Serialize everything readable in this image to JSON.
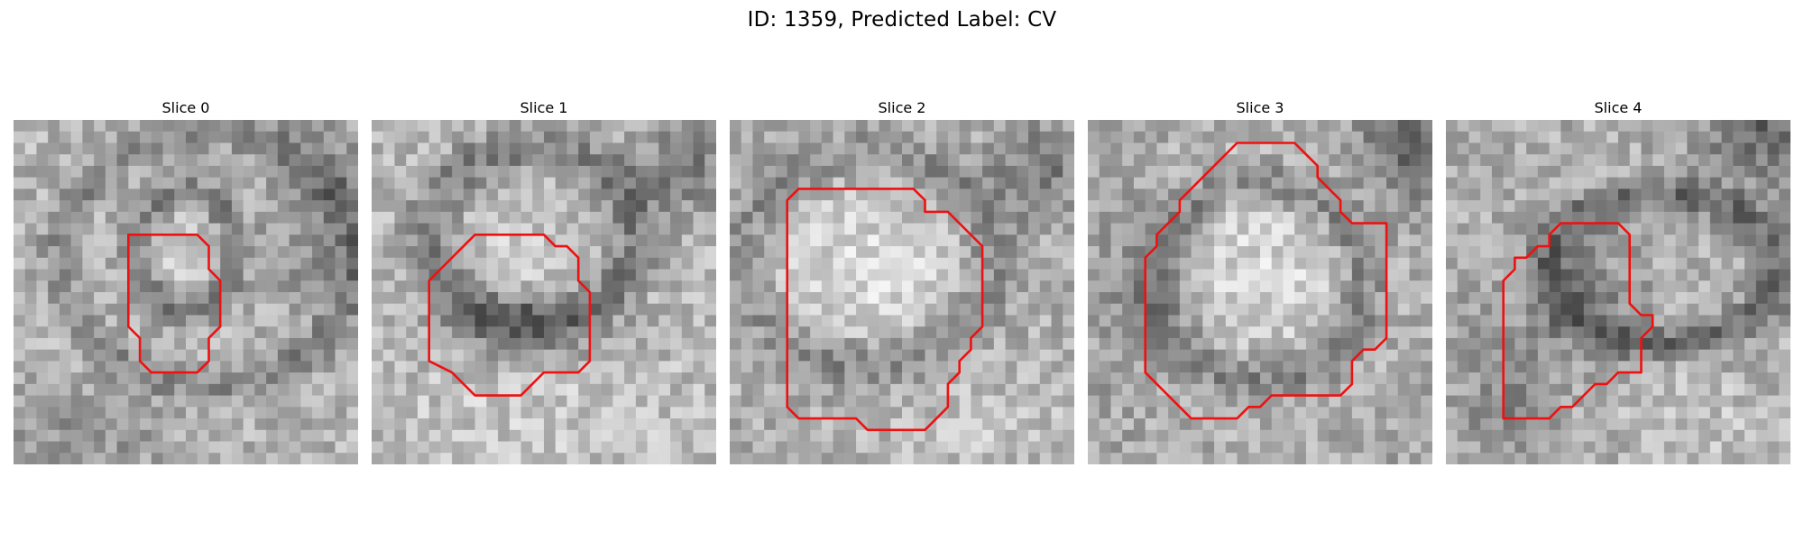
{
  "figure": {
    "title": "ID: 1359, Predicted Label: CV",
    "contour_color": "#ee1111"
  },
  "slices": [
    {
      "title": "Slice 0"
    },
    {
      "title": "Slice 1"
    },
    {
      "title": "Slice 2"
    },
    {
      "title": "Slice 3"
    },
    {
      "title": "Slice 4"
    }
  ]
}
